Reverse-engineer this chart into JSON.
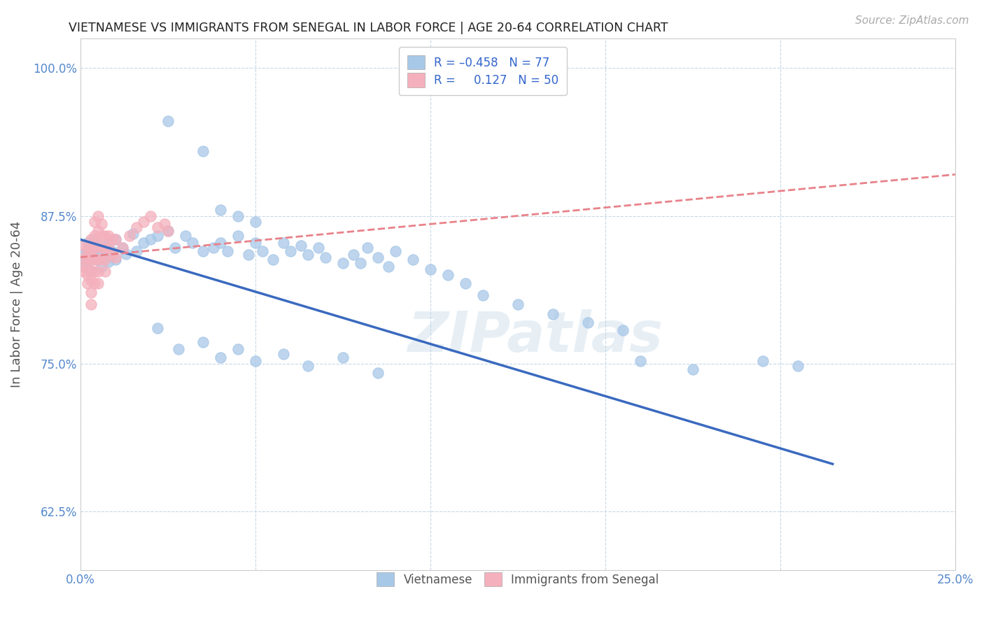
{
  "title": "VIETNAMESE VS IMMIGRANTS FROM SENEGAL IN LABOR FORCE | AGE 20-64 CORRELATION CHART",
  "source": "Source: ZipAtlas.com",
  "ylabel": "In Labor Force | Age 20-64",
  "xlim": [
    0.0,
    0.25
  ],
  "ylim": [
    0.575,
    1.025
  ],
  "xticks": [
    0.0,
    0.05,
    0.1,
    0.15,
    0.2,
    0.25
  ],
  "yticks": [
    0.625,
    0.75,
    0.875,
    1.0
  ],
  "xticklabels": [
    "0.0%",
    "",
    "",
    "",
    "",
    "25.0%"
  ],
  "yticklabels": [
    "62.5%",
    "75.0%",
    "87.5%",
    "100.0%"
  ],
  "viet_line_x0": 0.0,
  "viet_line_y0": 0.855,
  "viet_line_x1": 0.215,
  "viet_line_y1": 0.665,
  "sene_line_x0": 0.0,
  "sene_line_y0": 0.84,
  "sene_line_x1": 0.25,
  "sene_line_y1": 0.91,
  "viet_line_color": "#3a6abf",
  "senegal_line_color": "#e8828a",
  "scatter_viet_color": "#a8c8e8",
  "scatter_senegal_color": "#f4b0bc",
  "background_color": "#ffffff",
  "grid_color": "#c8d8e8",
  "title_color": "#222222",
  "axis_label_color": "#555555",
  "tick_color": "#5588cc",
  "watermark": "ZIPatlas",
  "scatter_viet": [
    [
      0.001,
      0.843
    ],
    [
      0.001,
      0.838
    ],
    [
      0.001,
      0.832
    ],
    [
      0.002,
      0.852
    ],
    [
      0.002,
      0.845
    ],
    [
      0.002,
      0.835
    ],
    [
      0.003,
      0.848
    ],
    [
      0.003,
      0.84
    ],
    [
      0.003,
      0.828
    ],
    [
      0.004,
      0.855
    ],
    [
      0.004,
      0.842
    ],
    [
      0.005,
      0.85
    ],
    [
      0.005,
      0.838
    ],
    [
      0.006,
      0.845
    ],
    [
      0.006,
      0.832
    ],
    [
      0.007,
      0.848
    ],
    [
      0.007,
      0.84
    ],
    [
      0.008,
      0.852
    ],
    [
      0.008,
      0.836
    ],
    [
      0.009,
      0.845
    ],
    [
      0.01,
      0.855
    ],
    [
      0.01,
      0.838
    ],
    [
      0.012,
      0.848
    ],
    [
      0.013,
      0.843
    ],
    [
      0.015,
      0.86
    ],
    [
      0.016,
      0.845
    ],
    [
      0.018,
      0.852
    ],
    [
      0.02,
      0.855
    ],
    [
      0.022,
      0.858
    ],
    [
      0.025,
      0.862
    ],
    [
      0.027,
      0.848
    ],
    [
      0.03,
      0.858
    ],
    [
      0.032,
      0.852
    ],
    [
      0.035,
      0.845
    ],
    [
      0.038,
      0.848
    ],
    [
      0.04,
      0.852
    ],
    [
      0.042,
      0.845
    ],
    [
      0.045,
      0.858
    ],
    [
      0.048,
      0.842
    ],
    [
      0.05,
      0.852
    ],
    [
      0.052,
      0.845
    ],
    [
      0.055,
      0.838
    ],
    [
      0.058,
      0.852
    ],
    [
      0.06,
      0.845
    ],
    [
      0.063,
      0.85
    ],
    [
      0.065,
      0.842
    ],
    [
      0.068,
      0.848
    ],
    [
      0.07,
      0.84
    ],
    [
      0.075,
      0.835
    ],
    [
      0.078,
      0.842
    ],
    [
      0.08,
      0.835
    ],
    [
      0.082,
      0.848
    ],
    [
      0.085,
      0.84
    ],
    [
      0.088,
      0.832
    ],
    [
      0.09,
      0.845
    ],
    [
      0.095,
      0.838
    ],
    [
      0.025,
      0.955
    ],
    [
      0.035,
      0.93
    ],
    [
      0.04,
      0.88
    ],
    [
      0.045,
      0.875
    ],
    [
      0.05,
      0.87
    ],
    [
      0.022,
      0.78
    ],
    [
      0.028,
      0.762
    ],
    [
      0.035,
      0.768
    ],
    [
      0.04,
      0.755
    ],
    [
      0.045,
      0.762
    ],
    [
      0.05,
      0.752
    ],
    [
      0.058,
      0.758
    ],
    [
      0.065,
      0.748
    ],
    [
      0.075,
      0.755
    ],
    [
      0.085,
      0.742
    ],
    [
      0.1,
      0.83
    ],
    [
      0.105,
      0.825
    ],
    [
      0.11,
      0.818
    ],
    [
      0.115,
      0.808
    ],
    [
      0.125,
      0.8
    ],
    [
      0.135,
      0.792
    ],
    [
      0.145,
      0.785
    ],
    [
      0.155,
      0.778
    ],
    [
      0.16,
      0.752
    ],
    [
      0.175,
      0.745
    ],
    [
      0.195,
      0.752
    ],
    [
      0.205,
      0.748
    ]
  ],
  "scatter_senegal": [
    [
      0.001,
      0.85
    ],
    [
      0.001,
      0.84
    ],
    [
      0.001,
      0.832
    ],
    [
      0.001,
      0.828
    ],
    [
      0.002,
      0.848
    ],
    [
      0.002,
      0.84
    ],
    [
      0.002,
      0.832
    ],
    [
      0.002,
      0.825
    ],
    [
      0.002,
      0.818
    ],
    [
      0.003,
      0.855
    ],
    [
      0.003,
      0.845
    ],
    [
      0.003,
      0.838
    ],
    [
      0.003,
      0.828
    ],
    [
      0.003,
      0.82
    ],
    [
      0.003,
      0.81
    ],
    [
      0.003,
      0.8
    ],
    [
      0.004,
      0.87
    ],
    [
      0.004,
      0.858
    ],
    [
      0.004,
      0.848
    ],
    [
      0.004,
      0.838
    ],
    [
      0.004,
      0.828
    ],
    [
      0.004,
      0.818
    ],
    [
      0.005,
      0.875
    ],
    [
      0.005,
      0.862
    ],
    [
      0.005,
      0.85
    ],
    [
      0.005,
      0.838
    ],
    [
      0.005,
      0.828
    ],
    [
      0.005,
      0.818
    ],
    [
      0.006,
      0.868
    ],
    [
      0.006,
      0.858
    ],
    [
      0.006,
      0.848
    ],
    [
      0.006,
      0.838
    ],
    [
      0.007,
      0.858
    ],
    [
      0.007,
      0.848
    ],
    [
      0.007,
      0.838
    ],
    [
      0.007,
      0.828
    ],
    [
      0.008,
      0.858
    ],
    [
      0.008,
      0.848
    ],
    [
      0.009,
      0.855
    ],
    [
      0.009,
      0.842
    ],
    [
      0.01,
      0.855
    ],
    [
      0.01,
      0.84
    ],
    [
      0.012,
      0.848
    ],
    [
      0.014,
      0.858
    ],
    [
      0.016,
      0.865
    ],
    [
      0.018,
      0.87
    ],
    [
      0.02,
      0.875
    ],
    [
      0.022,
      0.865
    ],
    [
      0.024,
      0.868
    ],
    [
      0.025,
      0.862
    ]
  ]
}
